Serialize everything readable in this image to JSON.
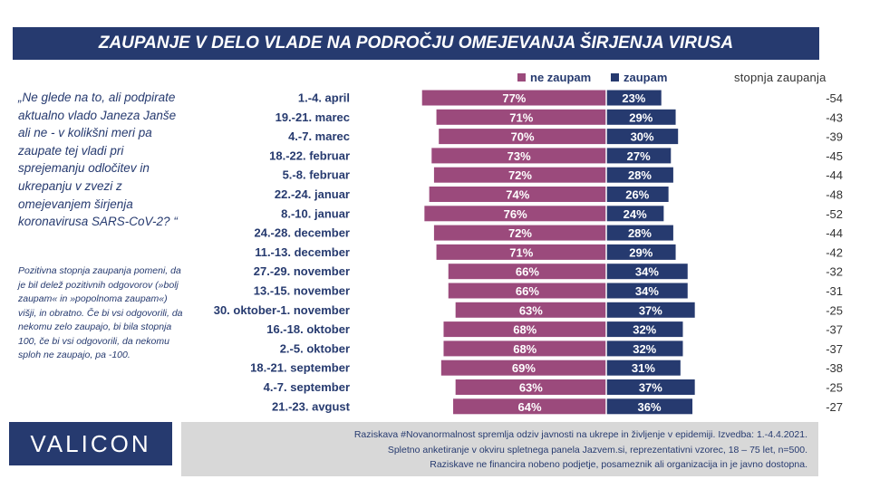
{
  "title": "ZAUPANJE V DELO VLADE NA PODROČJU OMEJEVANJA ŠIRJENJA VIRUSA",
  "question": "„Ne glede na to, ali podpirate aktualno vlado Janeza Janše ali ne - v kolikšni meri pa zaupate tej vladi pri sprejemanju odločitev in ukrepanju v zvezi z omejevanjem širjenja koronavirusa SARS-CoV-2? “",
  "note": "Pozitivna stopnja zaupanja pomeni, da je bil delež pozitivnih odgovorov (»bolj zaupam« in »popolnoma zaupam«) višji, in obratno. Če bi vsi odgovorili, da nekomu zelo zaupajo, bi bila stopnja 100, če bi vsi odgovorili, da nekomu sploh ne zaupajo, pa -100.",
  "logo": "VALICON",
  "footer": [
    "Raziskava #Novanormalnost spremlja odziv javnosti na ukrepe in življenje v epidemiji. Izvedba: 1.-4.4.2021.",
    "Spletno anketiranje v okviru spletnega panela Jazvem.si, reprezentativni vzorec, 18 – 75 let, n=500.",
    "Raziskave ne financira nobeno podjetje, posameznik ali organizacija in je javno dostopna."
  ],
  "colors": {
    "distrust": "#9b4a7c",
    "trust": "#263a6f",
    "title_bg": "#263a6f",
    "footer_bg": "#d8d8d8"
  },
  "chart_data": {
    "type": "bar",
    "orientation": "horizontal-diverging",
    "right_header": "stopnja zaupanja",
    "categories": [
      "1.-4. april",
      "19.-21. marec",
      "4.-7. marec",
      "18.-22. februar",
      "5.-8. februar",
      "22.-24. januar",
      "8.-10. januar",
      "24.-28. december",
      "11.-13. december",
      "27.-29. november",
      "13.-15. november",
      "30. oktober-1. november",
      "16.-18. oktober",
      "2.-5. oktober",
      "18.-21. september",
      "4.-7. september",
      "21.-23. avgust"
    ],
    "series": [
      {
        "name": "ne zaupam",
        "values": [
          77,
          71,
          70,
          73,
          72,
          74,
          76,
          72,
          71,
          66,
          66,
          63,
          68,
          68,
          69,
          63,
          64
        ]
      },
      {
        "name": "zaupam",
        "values": [
          23,
          29,
          30,
          27,
          28,
          26,
          24,
          28,
          29,
          34,
          34,
          37,
          32,
          32,
          31,
          37,
          36
        ]
      }
    ],
    "net_trust": [
      "-54",
      "-43",
      "-39",
      "-45",
      "-44",
      "-48",
      "-52",
      "-44",
      "-42",
      "-32",
      "-31",
      "-25",
      "-37",
      "-37",
      "-38",
      "-25",
      "-27"
    ],
    "value_suffix": "%"
  }
}
